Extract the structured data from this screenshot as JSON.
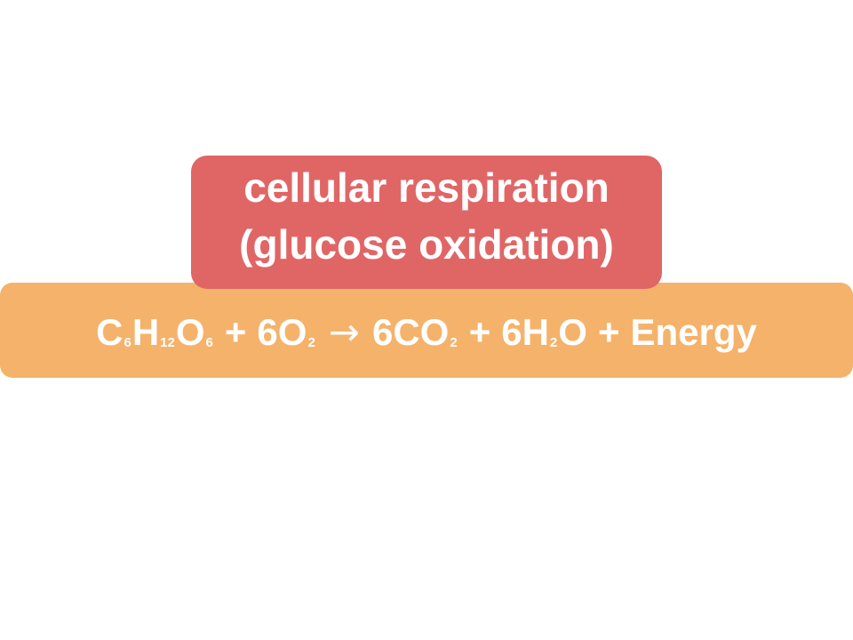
{
  "label": {
    "line1": "cellular respiration",
    "line2": "(glucose oxidation)",
    "color": "#e06666"
  },
  "equation": {
    "color": "#f5b26b",
    "reactant1": {
      "c": "C",
      "c_sub": "6",
      "h": "H",
      "h_sub": "12",
      "o": "O",
      "o_sub": "6"
    },
    "plus1": "+",
    "reactant2": {
      "coef": "6O",
      "sub": "2"
    },
    "arrow": "→",
    "product1": {
      "coef": "6CO",
      "sub": "2"
    },
    "plus2": "+",
    "product2": {
      "coef": "6H",
      "sub": "2",
      "tail": "O"
    },
    "plus3": "+",
    "product3": "Energy"
  }
}
